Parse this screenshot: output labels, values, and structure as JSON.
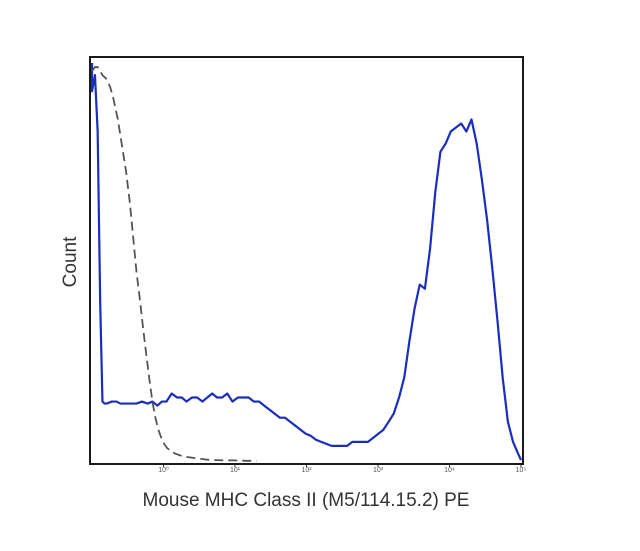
{
  "chart_data": {
    "type": "line",
    "title": "",
    "xlabel": "Mouse MHC Class II (M5/114.15.2) PE",
    "ylabel": "Count",
    "x_scale": "log",
    "xlim": [
      0.1,
      100000
    ],
    "ylim": [
      0,
      100
    ],
    "x_ticks": [
      {
        "value": 1,
        "label": "10⁰"
      },
      {
        "value": 10,
        "label": "10¹"
      },
      {
        "value": 100,
        "label": "10²"
      },
      {
        "value": 1000,
        "label": "10³"
      },
      {
        "value": 10000,
        "label": "10⁴"
      },
      {
        "value": 100000,
        "label": "10⁵"
      }
    ],
    "grid": false,
    "legend": "none",
    "series": [
      {
        "color": "#1a2dbf",
        "style": "solid",
        "x": [
          0.1,
          0.1,
          0.11,
          0.12,
          0.13,
          0.14,
          0.15,
          0.16,
          0.19,
          0.22,
          0.25,
          0.3,
          0.36,
          0.42,
          0.5,
          0.6,
          0.7,
          0.82,
          0.95,
          1.1,
          1.3,
          1.55,
          1.8,
          2.1,
          2.5,
          2.95,
          3.5,
          4.1,
          4.8,
          5.6,
          6.6,
          7.8,
          9.2,
          11,
          13,
          15.5,
          18.3,
          21.7,
          25.6,
          30.3,
          35.8,
          42.3,
          50,
          59,
          70,
          82.6,
          97.6,
          115,
          136,
          161,
          190,
          225,
          266,
          314,
          370,
          438,
          517,
          612,
          723,
          854,
          1010,
          1190,
          1410,
          1660,
          1970,
          2330,
          2750,
          3240,
          3830,
          4530,
          5350,
          6330,
          7470,
          8830,
          10400,
          12300,
          14600,
          17200,
          20300,
          24000,
          28400,
          33600,
          39700,
          46900,
          55400,
          65500,
          77400,
          91400,
          100000
        ],
        "y": [
          99,
          92,
          96,
          82,
          40,
          15,
          14.5,
          14.5,
          15,
          15,
          14.5,
          14.5,
          14.5,
          14.5,
          15,
          14.5,
          15,
          14,
          15,
          15,
          17,
          16,
          16,
          15,
          16,
          16,
          15,
          16,
          17,
          16,
          16,
          17,
          15,
          16,
          16,
          16,
          15,
          15,
          14,
          13,
          12,
          11,
          11,
          10,
          9,
          8,
          7,
          6.5,
          5.5,
          5,
          4.5,
          4,
          4,
          4,
          4,
          5,
          5,
          5,
          5,
          6,
          7,
          8,
          10,
          12,
          16,
          21,
          30,
          38,
          44,
          43,
          53,
          67,
          77,
          79,
          82,
          83,
          84,
          82,
          85,
          79,
          70,
          60,
          48,
          35,
          21,
          10,
          5,
          2,
          0.5
        ]
      },
      {
        "color": "#555555",
        "style": "dashed",
        "x": [
          0.1,
          0.11,
          0.12,
          0.13,
          0.14,
          0.16,
          0.18,
          0.2,
          0.23,
          0.26,
          0.3,
          0.34,
          0.38,
          0.42,
          0.47,
          0.52,
          0.58,
          0.64,
          0.7,
          0.77,
          0.85,
          0.93,
          1.02,
          1.12,
          1.3,
          1.5,
          1.8,
          2.2,
          2.7,
          3.3,
          4.0,
          5.0,
          7.0,
          10,
          14,
          20
        ],
        "y": [
          97,
          98,
          98,
          97,
          96,
          95,
          93,
          90,
          85,
          79,
          72,
          64,
          55,
          47,
          40,
          33,
          26,
          20,
          15,
          11,
          8,
          6,
          4.5,
          3.5,
          2.5,
          2,
          1.5,
          1.2,
          1,
          0.8,
          0.6,
          0.5,
          0.4,
          0.4,
          0.3,
          0.3
        ]
      }
    ]
  }
}
